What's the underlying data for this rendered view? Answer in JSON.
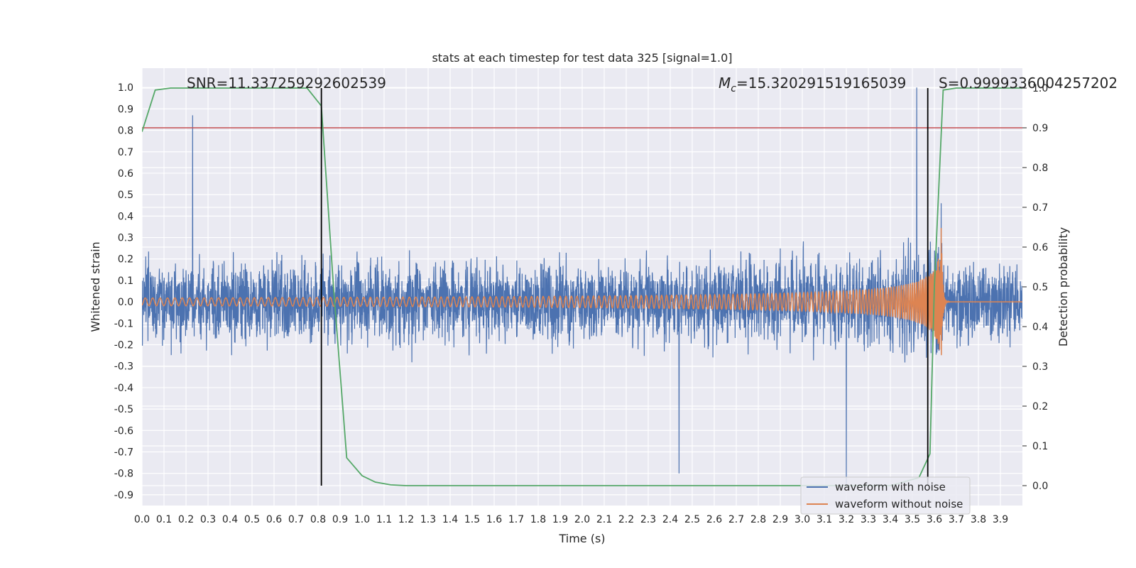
{
  "chart_data": {
    "type": "line",
    "title": "stats at each timestep for test data 325 [signal=1.0]",
    "xlabel": "Time (s)",
    "ylabel": "Whitened strain",
    "ylabel_right": "Detection probability",
    "xlim": [
      0.0,
      4.0
    ],
    "ylim": [
      -0.95,
      1.09
    ],
    "ylim_right": [
      -0.05,
      1.05
    ],
    "x_ticks": [
      "0.0",
      "0.1",
      "0.2",
      "0.3",
      "0.4",
      "0.5",
      "0.6",
      "0.7",
      "0.8",
      "0.9",
      "1.0",
      "1.1",
      "1.2",
      "1.3",
      "1.4",
      "1.5",
      "1.6",
      "1.7",
      "1.8",
      "1.9",
      "2.0",
      "2.1",
      "2.2",
      "2.3",
      "2.4",
      "2.5",
      "2.6",
      "2.7",
      "2.8",
      "2.9",
      "3.0",
      "3.1",
      "3.2",
      "3.3",
      "3.4",
      "3.5",
      "3.6",
      "3.7",
      "3.8",
      "3.9"
    ],
    "y_ticks": [
      "1.0",
      "0.9",
      "0.8",
      "0.7",
      "0.6",
      "0.5",
      "0.4",
      "0.3",
      "0.2",
      "0.1",
      "0.0",
      "-0.1",
      "-0.2",
      "-0.3",
      "-0.4",
      "-0.5",
      "-0.6",
      "-0.7",
      "-0.8",
      "-0.9"
    ],
    "y_ticks_right": [
      "1.0",
      "0.9",
      "0.8",
      "0.7",
      "0.6",
      "0.5",
      "0.4",
      "0.3",
      "0.2",
      "0.1",
      "0.0"
    ],
    "grid": true,
    "legend_position": "bottom-right",
    "annotations": {
      "snr": "SNR=11.337259292602539",
      "mc_symbol": "M",
      "mc_sub": "c",
      "mc_value": "=15.320291519165039",
      "s": "S=0.9999336004257202"
    },
    "threshold_right": 0.9,
    "vertical_lines_x": [
      0.815,
      3.57
    ],
    "series": [
      {
        "name": "waveform with noise",
        "color": "#4c72b0",
        "noise_std": 0.2,
        "spikes": [
          [
            0.23,
            0.87
          ],
          [
            3.52,
            1.0
          ],
          [
            3.2,
            -0.85
          ],
          [
            2.44,
            -0.8
          ]
        ]
      },
      {
        "name": "waveform without noise",
        "color": "#dd8452",
        "merger_time": 3.63
      },
      {
        "name": "detection probability",
        "color": "#55a868",
        "axis": "right",
        "x": [
          0.0,
          0.06,
          0.13,
          0.75,
          0.815,
          0.87,
          0.93,
          1.0,
          1.06,
          1.13,
          1.2,
          2.2,
          2.4,
          3.4,
          3.53,
          3.58,
          3.6,
          3.64,
          3.7,
          4.0
        ],
        "y": [
          0.89,
          0.995,
          1.0,
          1.0,
          0.955,
          0.5,
          0.07,
          0.025,
          0.009,
          0.002,
          0.0,
          0.0,
          0.0,
          0.0,
          0.02,
          0.08,
          0.5,
          0.995,
          1.0,
          1.0
        ]
      }
    ],
    "colors": {
      "background": "#eaeaf2",
      "grid": "#ffffff",
      "threshold": "#c44e52",
      "vline": "#000000"
    }
  }
}
